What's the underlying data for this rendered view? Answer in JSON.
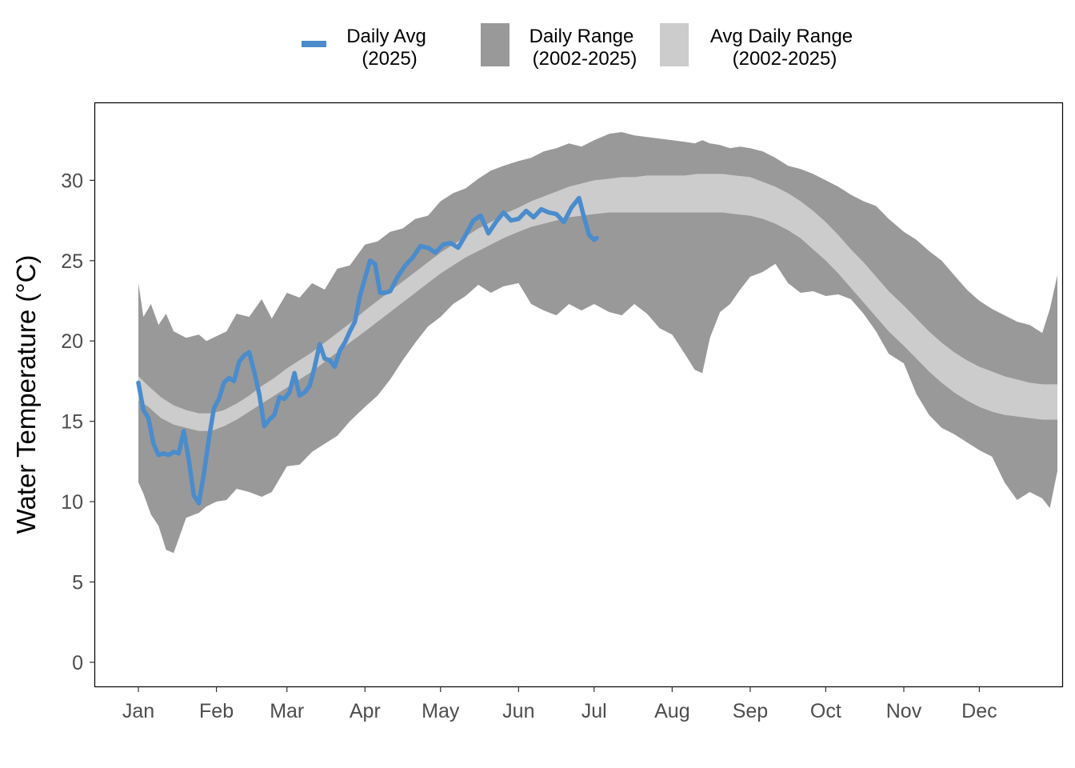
{
  "chart_data": {
    "type": "area",
    "ylabel": "Water Temperature (°C)",
    "xlabel": "",
    "title": "",
    "ylim": [
      -1.5,
      34.8
    ],
    "y_ticks": [
      0,
      5,
      10,
      15,
      20,
      25,
      30
    ],
    "x_range_days": [
      1,
      366
    ],
    "x_ticks": [
      {
        "label": "Jan",
        "day": 1
      },
      {
        "label": "Feb",
        "day": 32
      },
      {
        "label": "Mar",
        "day": 60
      },
      {
        "label": "Apr",
        "day": 91
      },
      {
        "label": "May",
        "day": 121
      },
      {
        "label": "Jun",
        "day": 152
      },
      {
        "label": "Jul",
        "day": 182
      },
      {
        "label": "Aug",
        "day": 213
      },
      {
        "label": "Sep",
        "day": 244
      },
      {
        "label": "Oct",
        "day": 274
      },
      {
        "label": "Nov",
        "day": 305
      },
      {
        "label": "Dec",
        "day": 335
      }
    ],
    "legend": {
      "position": "top",
      "items": [
        {
          "key": "daily_avg",
          "line1": "Daily Avg",
          "line2": "(2025)",
          "color": "#4a8ccc",
          "shape": "line"
        },
        {
          "key": "daily_range",
          "line1": "Daily Range",
          "line2": "(2002-2025)",
          "color": "#999999",
          "shape": "fill"
        },
        {
          "key": "avg_daily_range",
          "line1": "Avg Daily Range",
          "line2": "(2002-2025)",
          "color": "#cccccc",
          "shape": "fill"
        }
      ]
    },
    "series": [
      {
        "key": "daily_range",
        "color": "#999999",
        "day": [
          1,
          3,
          6,
          9,
          12,
          15,
          20,
          25,
          28,
          32,
          36,
          40,
          45,
          50,
          54,
          57,
          60,
          65,
          70,
          75,
          80,
          85,
          91,
          96,
          101,
          106,
          111,
          116,
          121,
          126,
          131,
          136,
          141,
          146,
          152,
          157,
          162,
          167,
          172,
          177,
          182,
          188,
          193,
          198,
          203,
          208,
          213,
          218,
          222,
          225,
          228,
          232,
          236,
          240,
          244,
          249,
          254,
          259,
          264,
          269,
          274,
          279,
          284,
          289,
          294,
          299,
          305,
          310,
          315,
          320,
          325,
          330,
          335,
          340,
          345,
          350,
          355,
          360,
          363,
          366
        ],
        "high": [
          23.6,
          21.5,
          22.3,
          21.0,
          21.7,
          20.6,
          20.2,
          20.4,
          20.0,
          20.3,
          20.6,
          21.7,
          21.5,
          22.6,
          21.4,
          22.2,
          23.0,
          22.7,
          23.6,
          23.2,
          24.5,
          24.7,
          26.0,
          26.2,
          26.8,
          27.0,
          27.6,
          27.8,
          28.7,
          29.2,
          29.5,
          30.1,
          30.6,
          30.9,
          31.2,
          31.4,
          31.8,
          32.0,
          32.3,
          32.1,
          32.5,
          32.9,
          33.0,
          32.8,
          32.7,
          32.6,
          32.5,
          32.4,
          32.3,
          32.5,
          32.3,
          32.2,
          32.0,
          32.1,
          32.0,
          31.8,
          31.4,
          30.9,
          30.7,
          30.4,
          30.0,
          29.6,
          29.1,
          28.7,
          28.4,
          27.6,
          26.8,
          26.3,
          25.6,
          25.0,
          24.1,
          23.2,
          22.5,
          22.0,
          21.6,
          21.2,
          21.0,
          20.5,
          22.0,
          24.1
        ],
        "low": [
          11.2,
          10.5,
          9.2,
          8.5,
          7.0,
          6.8,
          9.0,
          9.3,
          9.7,
          10.0,
          10.1,
          10.8,
          10.6,
          10.3,
          10.6,
          11.4,
          12.2,
          12.3,
          13.1,
          13.6,
          14.1,
          15.0,
          15.9,
          16.6,
          17.6,
          18.8,
          19.9,
          20.9,
          21.5,
          22.3,
          22.8,
          23.5,
          23.0,
          23.4,
          23.6,
          22.3,
          21.9,
          21.6,
          22.3,
          21.9,
          22.3,
          21.8,
          21.6,
          22.3,
          21.7,
          20.8,
          20.4,
          19.2,
          18.2,
          18.0,
          20.2,
          21.8,
          22.3,
          23.2,
          24.0,
          24.3,
          24.8,
          23.6,
          23.0,
          23.1,
          22.8,
          22.9,
          22.6,
          21.7,
          20.6,
          19.2,
          18.6,
          16.7,
          15.4,
          14.6,
          14.2,
          13.7,
          13.2,
          12.8,
          11.2,
          10.1,
          10.6,
          10.2,
          9.6,
          11.9
        ]
      },
      {
        "key": "avg_daily_range",
        "color": "#cccccc",
        "day": [
          1,
          5,
          10,
          15,
          20,
          25,
          30,
          35,
          40,
          45,
          50,
          55,
          60,
          65,
          70,
          75,
          80,
          85,
          91,
          96,
          101,
          106,
          111,
          116,
          121,
          126,
          131,
          136,
          141,
          146,
          152,
          157,
          162,
          167,
          172,
          177,
          182,
          188,
          193,
          198,
          203,
          208,
          213,
          218,
          223,
          228,
          233,
          238,
          244,
          249,
          254,
          259,
          264,
          269,
          274,
          279,
          284,
          289,
          294,
          299,
          305,
          310,
          315,
          320,
          325,
          330,
          335,
          340,
          345,
          350,
          355,
          360,
          366
        ],
        "high": [
          17.8,
          17.2,
          16.5,
          16.0,
          15.7,
          15.5,
          15.5,
          15.7,
          16.1,
          16.6,
          17.2,
          17.7,
          18.3,
          18.8,
          19.3,
          19.9,
          20.5,
          21.1,
          21.9,
          22.5,
          23.1,
          23.7,
          24.3,
          24.9,
          25.5,
          26.0,
          26.5,
          27.0,
          27.4,
          27.9,
          28.3,
          28.7,
          29.0,
          29.3,
          29.6,
          29.8,
          30.0,
          30.1,
          30.2,
          30.2,
          30.3,
          30.3,
          30.3,
          30.3,
          30.4,
          30.4,
          30.4,
          30.3,
          30.2,
          29.9,
          29.6,
          29.2,
          28.7,
          28.1,
          27.4,
          26.6,
          25.7,
          24.9,
          24.0,
          23.1,
          22.2,
          21.4,
          20.6,
          19.9,
          19.3,
          18.8,
          18.4,
          18.1,
          17.8,
          17.6,
          17.4,
          17.3,
          17.3
        ],
        "low": [
          16.3,
          15.9,
          15.2,
          14.8,
          14.6,
          14.4,
          14.4,
          14.7,
          15.1,
          15.6,
          16.1,
          16.6,
          17.1,
          17.6,
          18.1,
          18.7,
          19.3,
          19.9,
          20.6,
          21.2,
          21.8,
          22.4,
          23.0,
          23.6,
          24.2,
          24.7,
          25.2,
          25.6,
          26.0,
          26.4,
          26.8,
          27.1,
          27.3,
          27.5,
          27.7,
          27.8,
          27.9,
          28.0,
          28.0,
          28.0,
          28.0,
          28.0,
          28.0,
          28.0,
          28.0,
          28.0,
          28.0,
          27.9,
          27.8,
          27.6,
          27.3,
          26.9,
          26.4,
          25.7,
          25.0,
          24.2,
          23.3,
          22.4,
          21.5,
          20.6,
          19.7,
          18.9,
          18.1,
          17.4,
          16.8,
          16.3,
          15.9,
          15.6,
          15.4,
          15.3,
          15.2,
          15.1,
          15.1
        ]
      },
      {
        "key": "daily_avg",
        "color": "#4a8ccc",
        "day": [
          1,
          3,
          5,
          7,
          9,
          11,
          13,
          15,
          17,
          19,
          21,
          23,
          25,
          27,
          29,
          31,
          33,
          35,
          37,
          39,
          41,
          43,
          45,
          47,
          49,
          51,
          53,
          55,
          57,
          59,
          61,
          63,
          65,
          67,
          69,
          71,
          73,
          75,
          77,
          79,
          81,
          83,
          85,
          87,
          89,
          91,
          93,
          95,
          97,
          99,
          101,
          104,
          107,
          110,
          113,
          116,
          119,
          122,
          125,
          128,
          131,
          134,
          137,
          140,
          143,
          146,
          149,
          152,
          155,
          158,
          161,
          164,
          167,
          170,
          173,
          176,
          178,
          180,
          182,
          183
        ],
        "value": [
          17.4,
          15.7,
          15.2,
          13.6,
          12.9,
          13.0,
          12.9,
          13.1,
          13.0,
          14.4,
          12.6,
          10.4,
          9.9,
          11.7,
          13.9,
          15.8,
          16.4,
          17.4,
          17.7,
          17.5,
          18.7,
          19.1,
          19.3,
          18.1,
          16.7,
          14.7,
          15.1,
          15.4,
          16.5,
          16.4,
          16.8,
          18.0,
          16.6,
          16.8,
          17.2,
          18.4,
          19.8,
          18.9,
          18.8,
          18.4,
          19.4,
          19.9,
          20.6,
          21.2,
          22.8,
          23.9,
          25.0,
          24.8,
          23.0,
          23.0,
          23.1,
          24.0,
          24.7,
          25.2,
          25.9,
          25.8,
          25.5,
          26.0,
          26.1,
          25.8,
          26.6,
          27.5,
          27.8,
          26.7,
          27.4,
          28.0,
          27.5,
          27.6,
          28.1,
          27.7,
          28.2,
          28.0,
          27.9,
          27.4,
          28.3,
          28.9,
          27.7,
          26.6,
          26.3,
          26.4
        ]
      }
    ]
  }
}
